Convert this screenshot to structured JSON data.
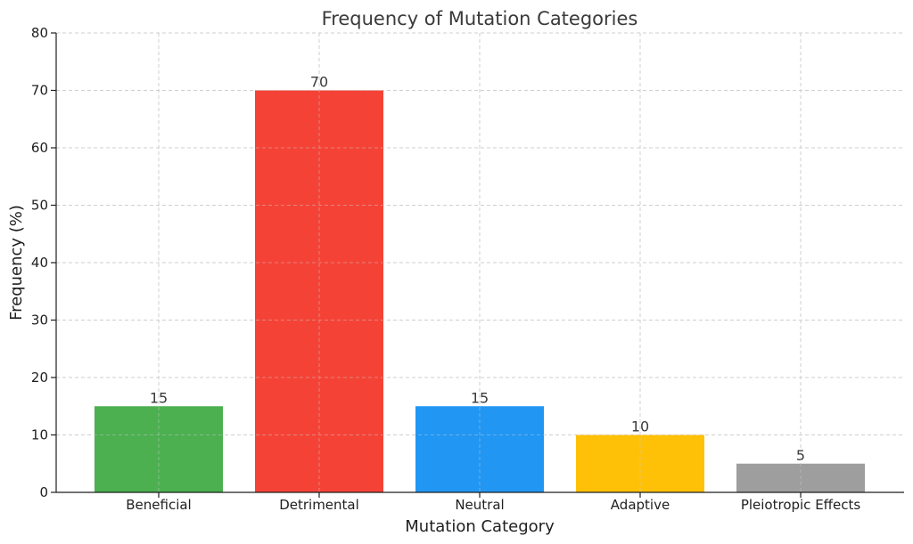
{
  "chart_data": {
    "type": "bar",
    "title": "Frequency of Mutation Categories",
    "xlabel": "Mutation Category",
    "ylabel": "Frequency (%)",
    "categories": [
      "Beneficial",
      "Detrimental",
      "Neutral",
      "Adaptive",
      "Pleiotropic Effects"
    ],
    "values": [
      15,
      70,
      15,
      10,
      5
    ],
    "colors": [
      "#4caf50",
      "#f44336",
      "#2196f3",
      "#ffc107",
      "#9e9e9e"
    ],
    "ylim": [
      0,
      80
    ],
    "yticks": [
      0,
      10,
      20,
      30,
      40,
      50,
      60,
      70,
      80
    ],
    "grid": true,
    "data_labels": true
  }
}
